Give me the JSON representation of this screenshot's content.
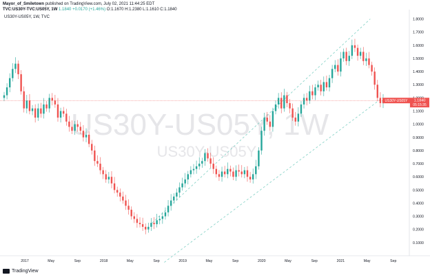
{
  "header": {
    "publisher_line_user": "Mayor_of_Smiletown",
    "publisher_line_rest": "published on TradingView.com, July 02, 2021 11:44:25 EDT",
    "symbol_line": "TVC:US30Y-TVC:US05Y, 1W",
    "last": "1.1840",
    "change": "+0.0170 (+1.46%)",
    "o": "O:1.1670",
    "h": "H:1.2380",
    "l": "L:1.1610",
    "c": "C:1.1840"
  },
  "pane_label": "US30Y-US05Y, 1W, TVC",
  "watermark": {
    "big": "US30Y-US05Y, 1W",
    "small": "US30Y-US05Y"
  },
  "price_badge": {
    "symbol": "US30Y-US05Y",
    "value": "1.1840",
    "countdown": "05:15:35"
  },
  "logo_text": "TradingView",
  "colors": {
    "up": "#26a69a",
    "down": "#ef5350",
    "channel": "#7ecfc3",
    "badge": "#ef5350"
  },
  "chart_data": {
    "type": "candlestick",
    "ylim": [
      0.0,
      1.85
    ],
    "y_ticks": [
      "1.8000",
      "1.7000",
      "1.6000",
      "1.5000",
      "1.4000",
      "1.3000",
      "1.2000",
      "1.1000",
      "1.0000",
      "0.9000",
      "0.8000",
      "0.7000",
      "0.6000",
      "0.5000",
      "0.4000",
      "0.3000",
      "0.2000",
      "0.1000"
    ],
    "x_ticks": [
      "2017",
      "May",
      "Sep",
      "2018",
      "May",
      "Sep",
      "2019",
      "May",
      "Sep",
      "2020",
      "May",
      "Sep",
      "2021",
      "May",
      "Sep"
    ],
    "trend_channel": {
      "lower": [
        [
          0.4,
          -0.05
        ],
        [
          0.94,
          1.2
        ]
      ],
      "upper": [
        [
          0.37,
          0.25
        ],
        [
          0.91,
          1.8
        ]
      ]
    },
    "series": [
      1.22,
      1.28,
      1.35,
      1.42,
      1.46,
      1.38,
      1.25,
      1.12,
      1.18,
      1.1,
      1.12,
      1.05,
      1.12,
      1.08,
      1.15,
      1.12,
      1.2,
      1.18,
      1.15,
      1.05,
      1.1,
      1.08,
      1.02,
      0.98,
      0.95,
      1.0,
      0.98,
      0.95,
      0.9,
      0.92,
      0.85,
      0.8,
      0.72,
      0.7,
      0.65,
      0.62,
      0.58,
      0.6,
      0.55,
      0.5,
      0.48,
      0.45,
      0.42,
      0.38,
      0.35,
      0.3,
      0.28,
      0.25,
      0.24,
      0.22,
      0.2,
      0.22,
      0.25,
      0.24,
      0.27,
      0.28,
      0.3,
      0.33,
      0.38,
      0.42,
      0.45,
      0.48,
      0.52,
      0.55,
      0.58,
      0.62,
      0.65,
      0.66,
      0.68,
      0.7,
      0.72,
      0.78,
      0.74,
      0.7,
      0.66,
      0.62,
      0.6,
      0.64,
      0.62,
      0.66,
      0.64,
      0.6,
      0.65,
      0.64,
      0.62,
      0.65,
      0.6,
      0.58,
      0.62,
      0.68,
      0.8,
      0.95,
      1.05,
      1.02,
      0.98,
      1.1,
      1.15,
      1.2,
      1.12,
      1.22,
      1.16,
      1.12,
      1.05,
      1.02,
      1.08,
      1.15,
      1.2,
      1.18,
      1.25,
      1.22,
      1.28,
      1.3,
      1.25,
      1.32,
      1.28,
      1.35,
      1.42,
      1.45,
      1.4,
      1.5,
      1.55,
      1.48,
      1.52,
      1.6,
      1.58,
      1.52,
      1.55,
      1.48,
      1.5,
      1.45,
      1.4,
      1.3,
      1.2,
      1.16,
      1.18
    ]
  }
}
